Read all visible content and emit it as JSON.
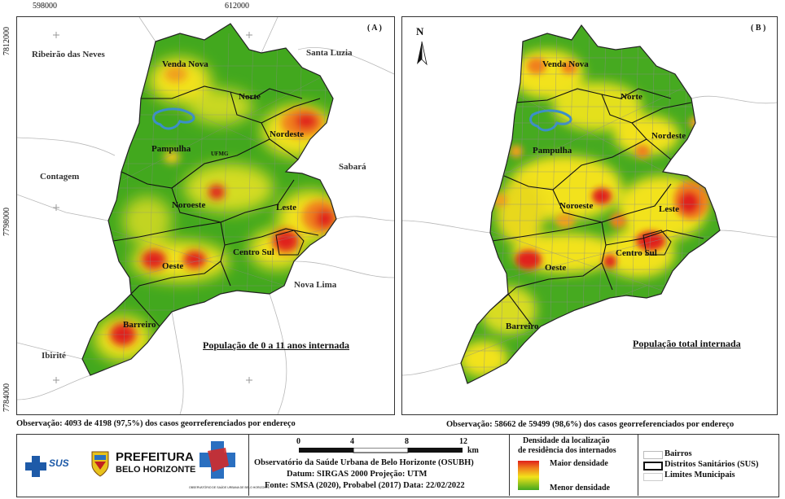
{
  "coords": {
    "top": [
      "598000",
      "612000"
    ],
    "left": [
      "7812000",
      "7798000",
      "7784000"
    ]
  },
  "panelA": {
    "label": "( A )",
    "title": "População de 0 a 11 anos internada",
    "places": {
      "ribeirao": "Ribeirão das Neves",
      "santa_luzia": "Santa Luzia",
      "contagem": "Contagem",
      "sabara": "Sabará",
      "nova_lima": "Nova Lima",
      "ibirite": "Ibirité",
      "ufmg": "UFMG"
    },
    "districts": {
      "venda_nova": "Venda Nova",
      "norte": "Norte",
      "nordeste": "Nordeste",
      "pampulha": "Pampulha",
      "noroeste": "Noroeste",
      "leste": "Leste",
      "oeste": "Oeste",
      "centro_sul": "Centro Sul",
      "barreiro": "Barreiro"
    },
    "observation": "Observação: 4093 de 4198 (97,5%) dos casos georreferenciados por endereço"
  },
  "panelB": {
    "label": "( B )",
    "title": "População total internada",
    "north": "N",
    "districts": {
      "venda_nova": "Venda Nova",
      "norte": "Norte",
      "nordeste": "Nordeste",
      "pampulha": "Pampulha",
      "noroeste": "Noroeste",
      "leste": "Leste",
      "oeste": "Oeste",
      "centro_sul": "Centro Sul",
      "barreiro": "Barreiro"
    },
    "observation": "Observação: 58662 de 59499 (98,6%) dos casos georreferenciados por endereço"
  },
  "footer": {
    "sus_label": "SUS",
    "prefeitura": "PREFEITURA",
    "bh": "BELO HORIZONTE",
    "obs_logo_caption": "OBSERVATÓRIO DE SAÚDE URBANA DE BELO HORIZONTE",
    "scale_ticks": [
      "0",
      "4",
      "8",
      "12"
    ],
    "scale_unit": "km",
    "credit_line1": "Observatório da Saúde Urbana de Belo Horizonte (OSUBH)",
    "credit_line2": "Datum: SIRGAS 2000    Projeção: UTM",
    "credit_line3": "Fonte: SMSA (2020), Probabel (2017)  Data: 22/02/2022",
    "density_title1": "Densidade da localização",
    "density_title2": "de residência dos internados",
    "density_max": "Maior densidade",
    "density_min": "Menor densidade",
    "legend_items": [
      "Bairros",
      "Distritos Sanitários (SUS)",
      "Limites Municipais"
    ]
  },
  "colors": {
    "green": "#3aa61c",
    "yellow": "#f2e21a",
    "orange": "#f0a01c",
    "red": "#e0201a",
    "water": "#3b8fc9"
  }
}
